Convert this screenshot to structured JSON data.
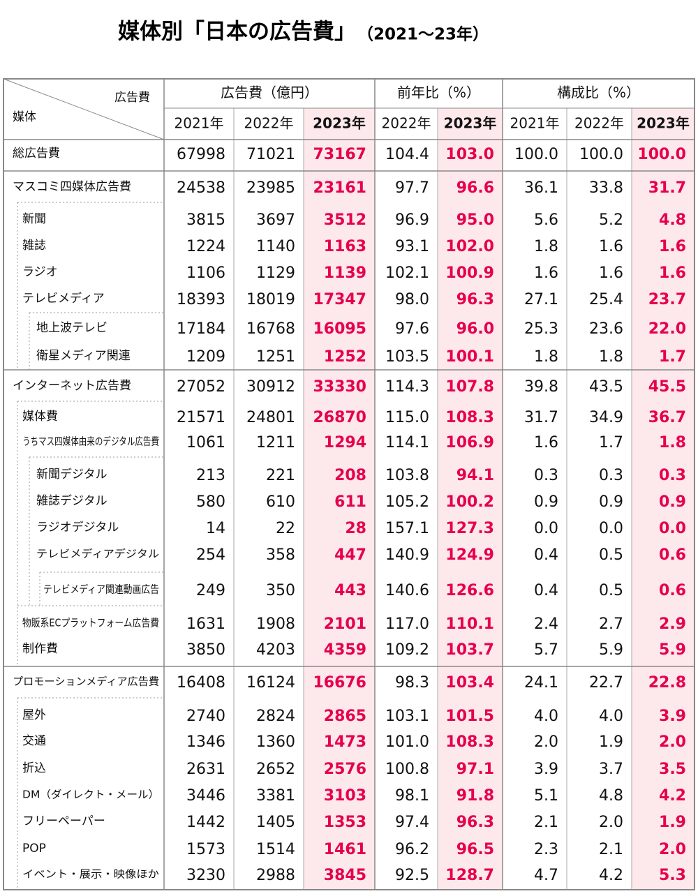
{
  "title": "媒体別「日本の広告費」",
  "subtitle": "（2021〜23年）",
  "header": {
    "corner_top": "広告費",
    "corner_bottom": "媒体",
    "groups": [
      "広告費（億円）",
      "前年比（%）",
      "構成比（%）"
    ],
    "years": [
      "2021年",
      "2022年",
      "2023年",
      "2022年",
      "2023年",
      "2021年",
      "2022年",
      "2023年"
    ]
  },
  "table": {
    "rows": [
      {
        "label": "総広告費",
        "values": [
          "67998",
          "71021",
          "73167",
          "104.4",
          "103.0",
          "100.0",
          "100.0",
          "100.0"
        ]
      },
      {
        "label": "マスコミ四媒体広告費",
        "values": [
          "24538",
          "23985",
          "23161",
          "97.7",
          "96.6",
          "36.1",
          "33.8",
          "31.7"
        ]
      },
      {
        "label": "新聞",
        "values": [
          "3815",
          "3697",
          "3512",
          "96.9",
          "95.0",
          "5.6",
          "5.2",
          "4.8"
        ]
      },
      {
        "label": "雑誌",
        "values": [
          "1224",
          "1140",
          "1163",
          "93.1",
          "102.0",
          "1.8",
          "1.6",
          "1.6"
        ]
      },
      {
        "label": "ラジオ",
        "values": [
          "1106",
          "1129",
          "1139",
          "102.1",
          "100.9",
          "1.6",
          "1.6",
          "1.6"
        ]
      },
      {
        "label": "テレビメディア",
        "values": [
          "18393",
          "18019",
          "17347",
          "98.0",
          "96.3",
          "27.1",
          "25.4",
          "23.7"
        ]
      },
      {
        "label": "地上波テレビ",
        "values": [
          "17184",
          "16768",
          "16095",
          "97.6",
          "96.0",
          "25.3",
          "23.6",
          "22.0"
        ]
      },
      {
        "label": "衛星メディア関連",
        "values": [
          "1209",
          "1251",
          "1252",
          "103.5",
          "100.1",
          "1.8",
          "1.8",
          "1.7"
        ]
      },
      {
        "label": "インターネット広告費",
        "values": [
          "27052",
          "30912",
          "33330",
          "114.3",
          "107.8",
          "39.8",
          "43.5",
          "45.5"
        ]
      },
      {
        "label": "媒体費",
        "values": [
          "21571",
          "24801",
          "26870",
          "115.0",
          "108.3",
          "31.7",
          "34.9",
          "36.7"
        ]
      },
      {
        "label": "うちマス四媒体由来のデジタル広告費",
        "values": [
          "1061",
          "1211",
          "1294",
          "114.1",
          "106.9",
          "1.6",
          "1.7",
          "1.8"
        ]
      },
      {
        "label": "新聞デジタル",
        "values": [
          "213",
          "221",
          "208",
          "103.8",
          "94.1",
          "0.3",
          "0.3",
          "0.3"
        ]
      },
      {
        "label": "雑誌デジタル",
        "values": [
          "580",
          "610",
          "611",
          "105.2",
          "100.2",
          "0.9",
          "0.9",
          "0.9"
        ]
      },
      {
        "label": "ラジオデジタル",
        "values": [
          "14",
          "22",
          "28",
          "157.1",
          "127.3",
          "0.0",
          "0.0",
          "0.0"
        ]
      },
      {
        "label": "テレビメディアデジタル",
        "values": [
          "254",
          "358",
          "447",
          "140.9",
          "124.9",
          "0.4",
          "0.5",
          "0.6"
        ]
      },
      {
        "label": "テレビメディア関連動画広告",
        "values": [
          "249",
          "350",
          "443",
          "140.6",
          "126.6",
          "0.4",
          "0.5",
          "0.6"
        ]
      },
      {
        "label": "物販系ECプラットフォーム広告費",
        "values": [
          "1631",
          "1908",
          "2101",
          "117.0",
          "110.1",
          "2.4",
          "2.7",
          "2.9"
        ]
      },
      {
        "label": "制作費",
        "values": [
          "3850",
          "4203",
          "4359",
          "109.2",
          "103.7",
          "5.7",
          "5.9",
          "5.9"
        ]
      },
      {
        "label": "プロモーションメディア広告費",
        "values": [
          "16408",
          "16124",
          "16676",
          "98.3",
          "103.4",
          "24.1",
          "22.7",
          "22.8"
        ]
      },
      {
        "label": "屋外",
        "values": [
          "2740",
          "2824",
          "2865",
          "103.1",
          "101.5",
          "4.0",
          "4.0",
          "3.9"
        ]
      },
      {
        "label": "交通",
        "values": [
          "1346",
          "1360",
          "1473",
          "101.0",
          "108.3",
          "2.0",
          "1.9",
          "2.0"
        ]
      },
      {
        "label": "折込",
        "values": [
          "2631",
          "2652",
          "2576",
          "100.8",
          "97.1",
          "3.9",
          "3.7",
          "3.5"
        ]
      },
      {
        "label": "DM（ダイレクト・メール）",
        "values": [
          "3446",
          "3381",
          "3103",
          "98.1",
          "91.8",
          "5.1",
          "4.8",
          "4.2"
        ]
      },
      {
        "label": "フリーペーパー",
        "values": [
          "1442",
          "1405",
          "1353",
          "97.4",
          "96.3",
          "2.1",
          "2.0",
          "1.9"
        ]
      },
      {
        "label": "POP",
        "values": [
          "1573",
          "1514",
          "1461",
          "96.2",
          "96.5",
          "2.3",
          "2.1",
          "2.0"
        ]
      },
      {
        "label": "イベント・展示・映像ほか",
        "values": [
          "3230",
          "2988",
          "3845",
          "92.5",
          "128.7",
          "4.7",
          "4.2",
          "5.3"
        ]
      }
    ]
  }
}
